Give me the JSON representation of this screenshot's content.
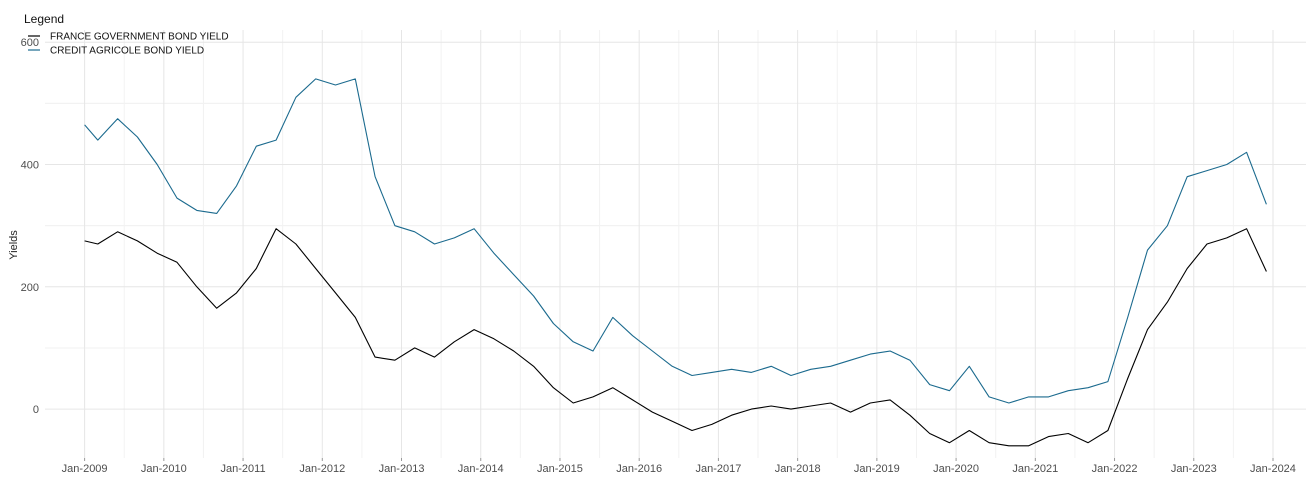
{
  "chart_data": {
    "type": "line",
    "title": "",
    "xlabel": "",
    "ylabel": "Yields",
    "x_ticks": [
      "Jan-2009",
      "Jan-2010",
      "Jan-2011",
      "Jan-2012",
      "Jan-2013",
      "Jan-2014",
      "Jan-2015",
      "Jan-2016",
      "Jan-2017",
      "Jan-2018",
      "Jan-2019",
      "Jan-2020",
      "Jan-2021",
      "Jan-2022",
      "Jan-2023",
      "Jan-2024"
    ],
    "y_ticks": [
      0,
      200,
      400,
      600
    ],
    "xlim": [
      "2008-07",
      "2024-06"
    ],
    "ylim": [
      -80,
      620
    ],
    "grid": true,
    "legend": {
      "title": "Legend",
      "position": "top-left"
    },
    "series": [
      {
        "name": "FRANCE GOVERNMENT BOND YIELD",
        "color": "#000000",
        "x": [
          "2009-01",
          "2009-03",
          "2009-06",
          "2009-09",
          "2009-12",
          "2010-03",
          "2010-06",
          "2010-09",
          "2010-12",
          "2011-03",
          "2011-06",
          "2011-09",
          "2011-12",
          "2012-03",
          "2012-06",
          "2012-09",
          "2012-12",
          "2013-03",
          "2013-06",
          "2013-09",
          "2013-12",
          "2014-03",
          "2014-06",
          "2014-09",
          "2014-12",
          "2015-03",
          "2015-06",
          "2015-09",
          "2015-12",
          "2016-03",
          "2016-06",
          "2016-09",
          "2016-12",
          "2017-03",
          "2017-06",
          "2017-09",
          "2017-12",
          "2018-03",
          "2018-06",
          "2018-09",
          "2018-12",
          "2019-03",
          "2019-06",
          "2019-09",
          "2019-12",
          "2020-03",
          "2020-06",
          "2020-09",
          "2020-12",
          "2021-03",
          "2021-06",
          "2021-09",
          "2021-12",
          "2022-03",
          "2022-06",
          "2022-09",
          "2022-12",
          "2023-03",
          "2023-06",
          "2023-09",
          "2023-12"
        ],
        "values": [
          275,
          270,
          290,
          275,
          255,
          240,
          200,
          165,
          190,
          230,
          295,
          270,
          230,
          190,
          150,
          85,
          80,
          100,
          85,
          110,
          130,
          115,
          95,
          70,
          35,
          10,
          20,
          35,
          15,
          -5,
          -20,
          -35,
          -25,
          -10,
          0,
          5,
          0,
          5,
          10,
          -5,
          10,
          15,
          -10,
          -40,
          -55,
          -35,
          -55,
          -60,
          -60,
          -45,
          -40,
          -55,
          -35,
          50,
          130,
          175,
          230,
          270,
          280,
          295,
          225
        ]
      },
      {
        "name": "CREDIT AGRICOLE BOND YIELD",
        "color": "#1b6a8e",
        "x": [
          "2009-01",
          "2009-03",
          "2009-06",
          "2009-09",
          "2009-12",
          "2010-03",
          "2010-06",
          "2010-09",
          "2010-12",
          "2011-03",
          "2011-06",
          "2011-09",
          "2011-12",
          "2012-03",
          "2012-06",
          "2012-09",
          "2012-12",
          "2013-03",
          "2013-06",
          "2013-09",
          "2013-12",
          "2014-03",
          "2014-06",
          "2014-09",
          "2014-12",
          "2015-03",
          "2015-06",
          "2015-09",
          "2015-12",
          "2016-03",
          "2016-06",
          "2016-09",
          "2016-12",
          "2017-03",
          "2017-06",
          "2017-09",
          "2017-12",
          "2018-03",
          "2018-06",
          "2018-09",
          "2018-12",
          "2019-03",
          "2019-06",
          "2019-09",
          "2019-12",
          "2020-03",
          "2020-06",
          "2020-09",
          "2020-12",
          "2021-03",
          "2021-06",
          "2021-09",
          "2021-12",
          "2022-03",
          "2022-06",
          "2022-09",
          "2022-12",
          "2023-03",
          "2023-06",
          "2023-09",
          "2023-12"
        ],
        "values": [
          465,
          440,
          475,
          445,
          400,
          345,
          325,
          320,
          365,
          430,
          440,
          510,
          540,
          530,
          540,
          380,
          300,
          290,
          270,
          280,
          295,
          255,
          220,
          185,
          140,
          110,
          95,
          150,
          120,
          95,
          70,
          55,
          60,
          65,
          60,
          70,
          55,
          65,
          70,
          80,
          90,
          95,
          80,
          40,
          30,
          70,
          20,
          10,
          20,
          20,
          30,
          35,
          45,
          150,
          260,
          300,
          380,
          390,
          400,
          420,
          335
        ]
      }
    ]
  }
}
